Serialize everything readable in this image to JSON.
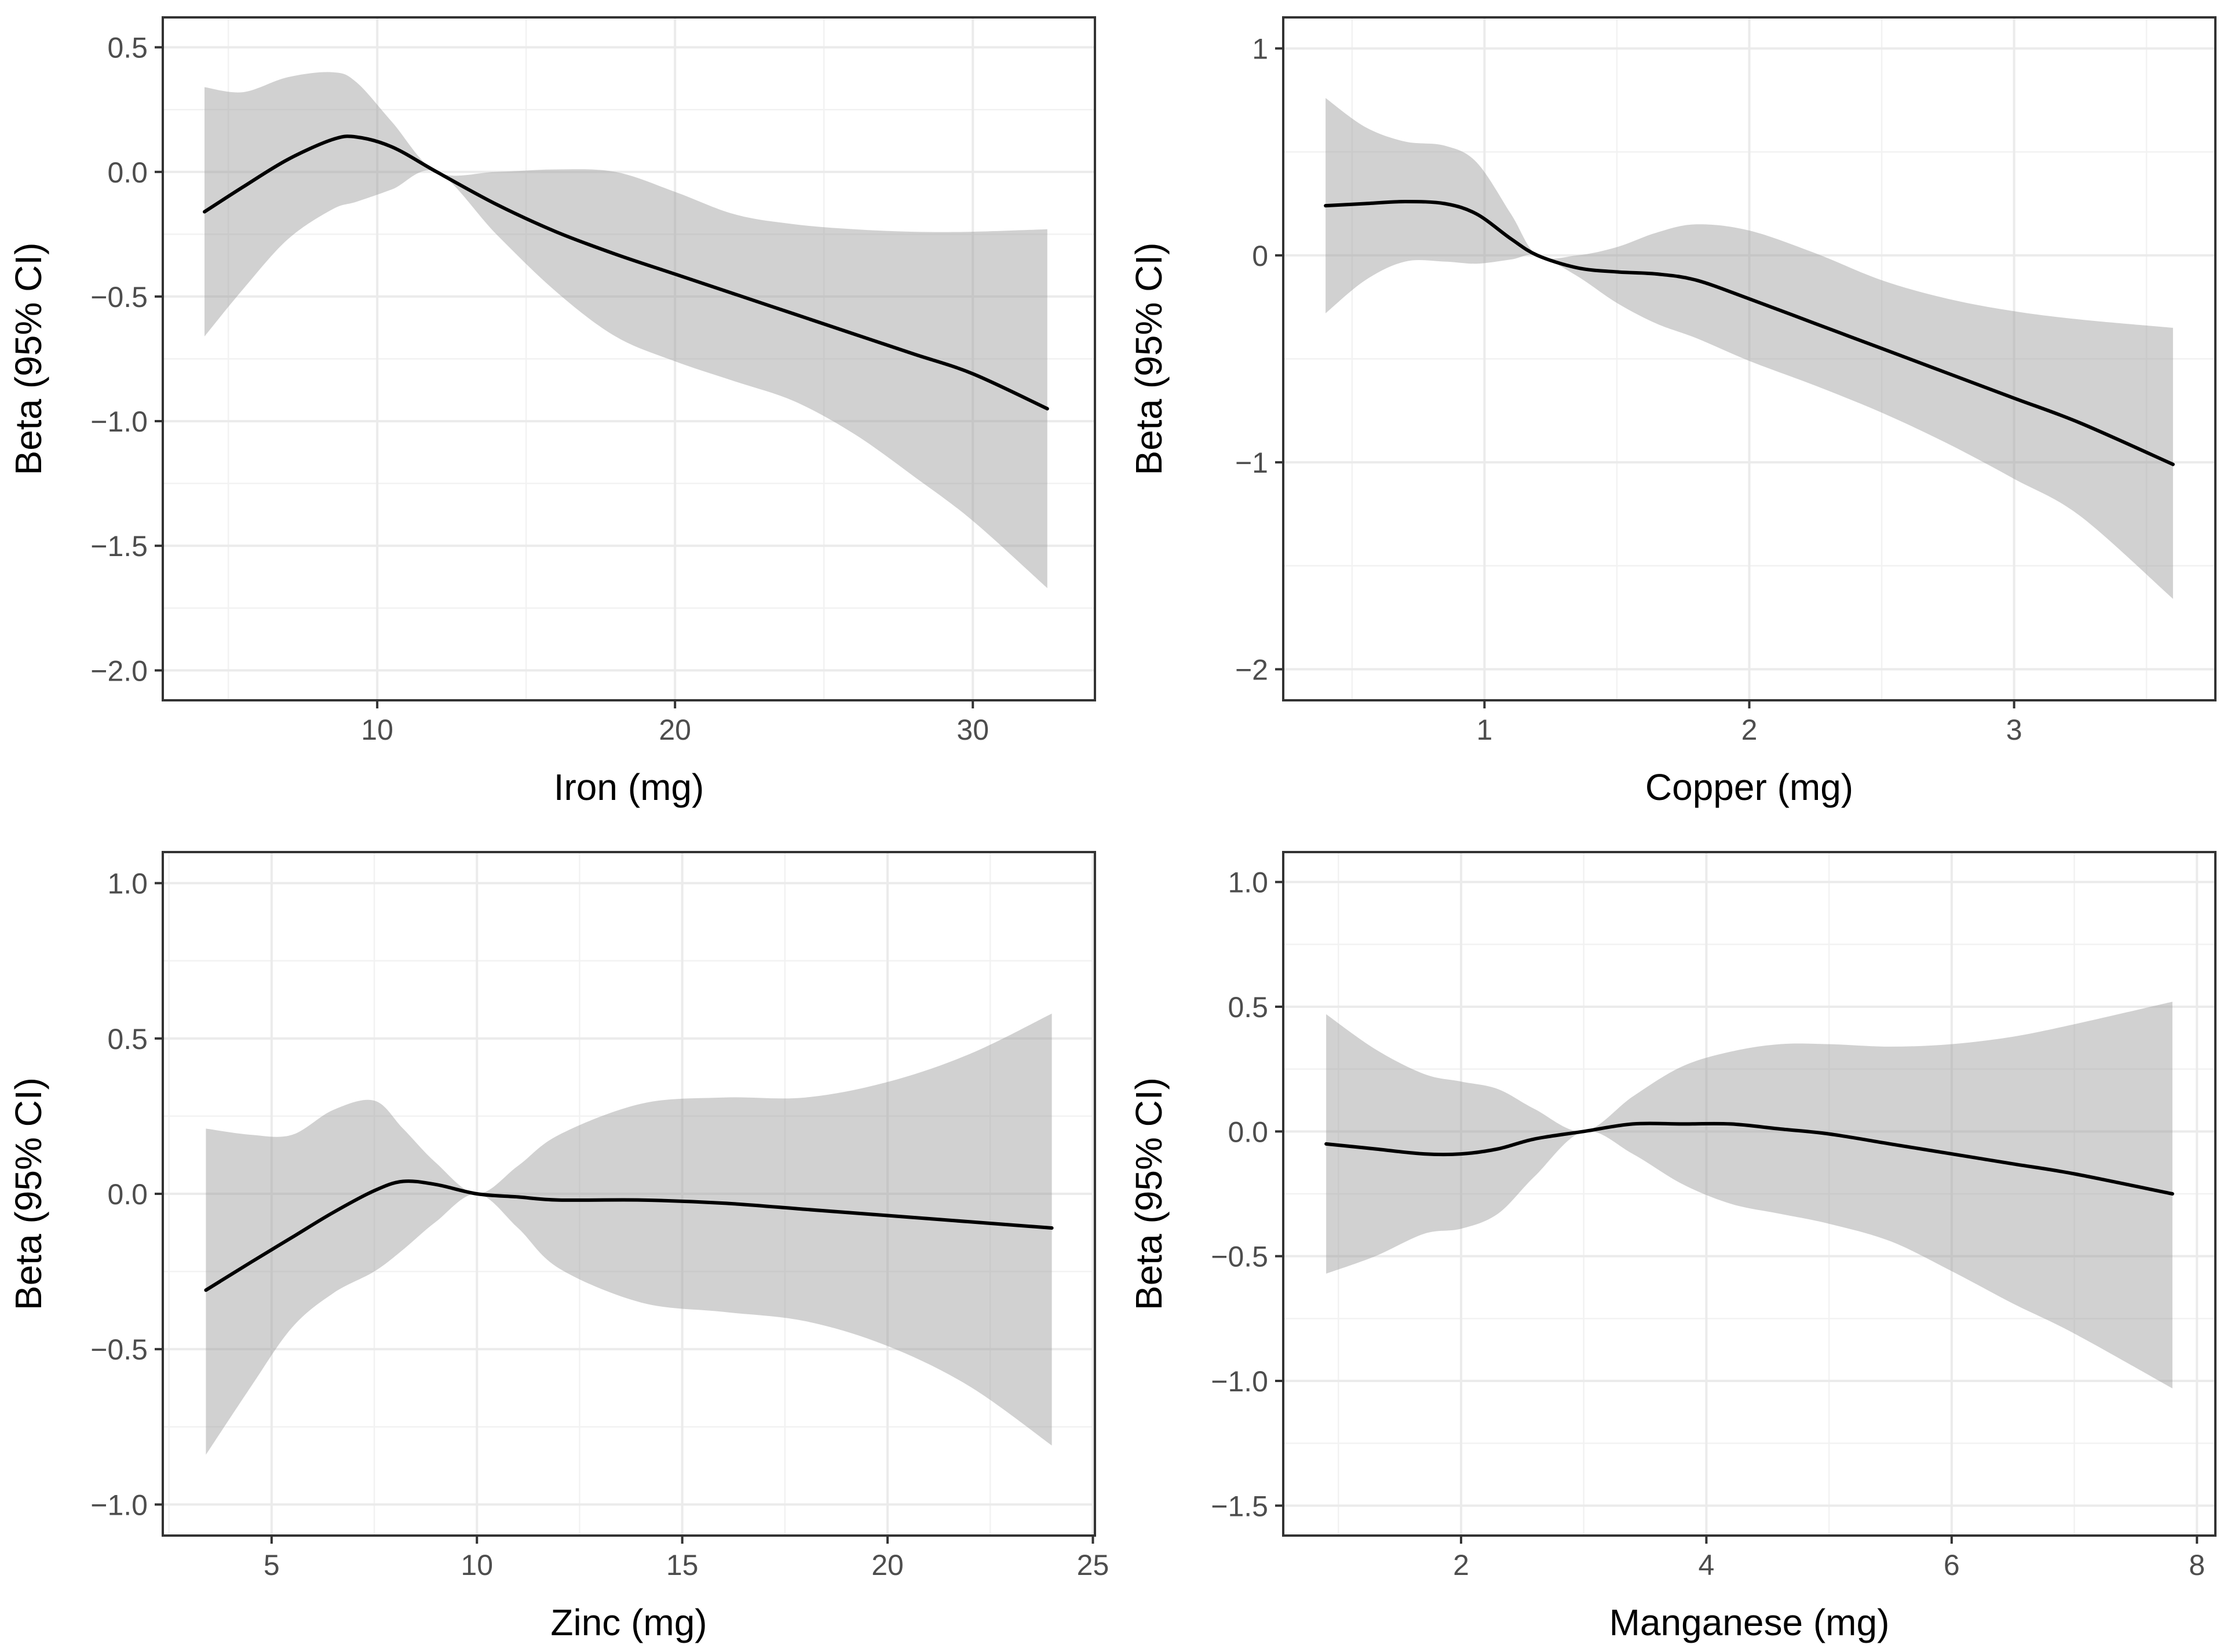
{
  "chart_data": [
    {
      "type": "line",
      "title": "",
      "xlabel": "Iron (mg)",
      "ylabel": "Beta (95% CI)",
      "xlim": [
        2.8,
        34.1
      ],
      "ylim": [
        -2.12,
        0.62
      ],
      "xticks": [
        10,
        20,
        30
      ],
      "xtick_labels": [
        "10",
        "20",
        "30"
      ],
      "yticks": [
        0.5,
        0.0,
        -0.5,
        -1.0,
        -1.5,
        -2.0
      ],
      "ytick_labels": [
        "0.5",
        "0.0",
        "−0.5",
        "−1.0",
        "−1.5",
        "−2.0"
      ],
      "grid": true,
      "series": [
        {
          "name": "Beta",
          "x": [
            4.2,
            5.5,
            7,
            8.5,
            9.3,
            10.5,
            12,
            14,
            16,
            18,
            20,
            22,
            24,
            26,
            28,
            30,
            32.5
          ],
          "y": [
            -0.16,
            -0.06,
            0.05,
            0.13,
            0.14,
            0.1,
            0.0,
            -0.13,
            -0.24,
            -0.33,
            -0.41,
            -0.49,
            -0.57,
            -0.65,
            -0.73,
            -0.81,
            -0.95
          ],
          "lower": [
            -0.66,
            -0.47,
            -0.27,
            -0.15,
            -0.12,
            -0.07,
            0.0,
            -0.25,
            -0.48,
            -0.66,
            -0.76,
            -0.84,
            -0.92,
            -1.05,
            -1.22,
            -1.4,
            -1.67
          ],
          "upper": [
            0.34,
            0.32,
            0.38,
            0.4,
            0.36,
            0.2,
            0.0,
            0.0,
            0.01,
            0.0,
            -0.08,
            -0.17,
            -0.21,
            -0.23,
            -0.24,
            -0.24,
            -0.23
          ]
        }
      ]
    },
    {
      "type": "line",
      "title": "",
      "xlabel": "Copper (mg)",
      "ylabel": "Beta (95% CI)",
      "xlim": [
        0.24,
        3.76
      ],
      "ylim": [
        -2.15,
        1.15
      ],
      "xticks": [
        1,
        2,
        3
      ],
      "xtick_labels": [
        "1",
        "2",
        "3"
      ],
      "yticks": [
        1,
        0,
        -1,
        -2
      ],
      "ytick_labels": [
        "1",
        "0",
        "−1",
        "−2"
      ],
      "grid": true,
      "series": [
        {
          "name": "Beta",
          "x": [
            0.4,
            0.55,
            0.7,
            0.85,
            0.97,
            1.1,
            1.2,
            1.35,
            1.5,
            1.65,
            1.8,
            2.0,
            2.25,
            2.5,
            2.75,
            3.0,
            3.25,
            3.6
          ],
          "y": [
            0.24,
            0.25,
            0.26,
            0.25,
            0.2,
            0.08,
            0.0,
            -0.06,
            -0.08,
            -0.09,
            -0.12,
            -0.21,
            -0.33,
            -0.45,
            -0.57,
            -0.69,
            -0.81,
            -1.01
          ],
          "lower": [
            -0.28,
            -0.12,
            -0.03,
            -0.03,
            -0.04,
            -0.02,
            0.0,
            -0.1,
            -0.23,
            -0.33,
            -0.4,
            -0.51,
            -0.63,
            -0.76,
            -0.91,
            -1.08,
            -1.26,
            -1.66
          ],
          "upper": [
            0.76,
            0.62,
            0.55,
            0.53,
            0.45,
            0.2,
            0.0,
            0.0,
            0.04,
            0.11,
            0.15,
            0.12,
            0.01,
            -0.12,
            -0.21,
            -0.27,
            -0.31,
            -0.35
          ]
        }
      ]
    },
    {
      "type": "line",
      "title": "",
      "xlabel": "Zinc (mg)",
      "ylabel": "Beta (95% CI)",
      "xlim": [
        2.35,
        25.05
      ],
      "ylim": [
        -1.1,
        1.1
      ],
      "xticks": [
        5,
        10,
        15,
        20,
        25
      ],
      "xtick_labels": [
        "5",
        "10",
        "15",
        "20",
        "25"
      ],
      "yticks": [
        1.0,
        0.5,
        0.0,
        -0.5,
        -1.0
      ],
      "ytick_labels": [
        "1.0",
        "0.5",
        "0.0",
        "−0.5",
        "−1.0"
      ],
      "grid": true,
      "series": [
        {
          "name": "Beta",
          "x": [
            3.4,
            4.5,
            5.5,
            6.5,
            7.5,
            8.2,
            9,
            10,
            11,
            12,
            14,
            16,
            18,
            20,
            22,
            24
          ],
          "y": [
            -0.31,
            -0.22,
            -0.14,
            -0.06,
            0.01,
            0.04,
            0.03,
            0.0,
            -0.01,
            -0.02,
            -0.02,
            -0.03,
            -0.05,
            -0.07,
            -0.09,
            -0.11
          ],
          "lower": [
            -0.84,
            -0.62,
            -0.43,
            -0.32,
            -0.25,
            -0.18,
            -0.09,
            0.0,
            -0.11,
            -0.24,
            -0.35,
            -0.38,
            -0.41,
            -0.49,
            -0.62,
            -0.81
          ],
          "upper": [
            0.21,
            0.19,
            0.19,
            0.27,
            0.3,
            0.21,
            0.1,
            0.0,
            0.09,
            0.19,
            0.29,
            0.31,
            0.31,
            0.36,
            0.45,
            0.58
          ]
        }
      ]
    },
    {
      "type": "line",
      "title": "",
      "xlabel": "Manganese (mg)",
      "ylabel": "Beta (95% CI)",
      "xlim": [
        0.55,
        8.15
      ],
      "ylim": [
        -1.62,
        1.12
      ],
      "xticks": [
        2,
        4,
        6,
        8
      ],
      "xtick_labels": [
        "2",
        "4",
        "6",
        "8"
      ],
      "yticks": [
        1.0,
        0.5,
        0.0,
        -0.5,
        -1.0,
        -1.5
      ],
      "ytick_labels": [
        "1.0",
        "0.5",
        "0.0",
        "−0.5",
        "−1.0",
        "−1.5"
      ],
      "grid": true,
      "series": [
        {
          "name": "Beta",
          "x": [
            0.9,
            1.3,
            1.7,
            2.0,
            2.3,
            2.6,
            3.0,
            3.4,
            3.8,
            4.2,
            4.6,
            5.0,
            5.5,
            6.0,
            6.5,
            7.0,
            7.8
          ],
          "y": [
            -0.05,
            -0.07,
            -0.09,
            -0.09,
            -0.07,
            -0.03,
            0.0,
            0.03,
            0.03,
            0.03,
            0.01,
            -0.01,
            -0.05,
            -0.09,
            -0.13,
            -0.17,
            -0.25
          ],
          "lower": [
            -0.57,
            -0.5,
            -0.41,
            -0.39,
            -0.33,
            -0.18,
            0.0,
            -0.09,
            -0.21,
            -0.29,
            -0.33,
            -0.37,
            -0.44,
            -0.56,
            -0.69,
            -0.81,
            -1.03
          ],
          "upper": [
            0.47,
            0.33,
            0.23,
            0.2,
            0.17,
            0.09,
            0.0,
            0.14,
            0.26,
            0.32,
            0.35,
            0.35,
            0.34,
            0.35,
            0.38,
            0.43,
            0.52
          ]
        }
      ]
    }
  ]
}
